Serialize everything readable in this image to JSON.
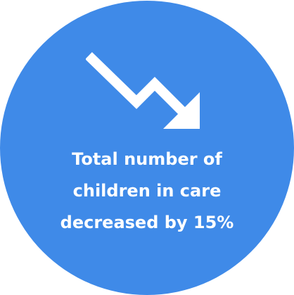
{
  "badge": {
    "background_color": "#3f8ae8",
    "text_color": "#ffffff",
    "icon": "trending-down-arrow-icon",
    "caption_lines": [
      "Total number of",
      "children in care",
      "decreased by 15%"
    ]
  }
}
